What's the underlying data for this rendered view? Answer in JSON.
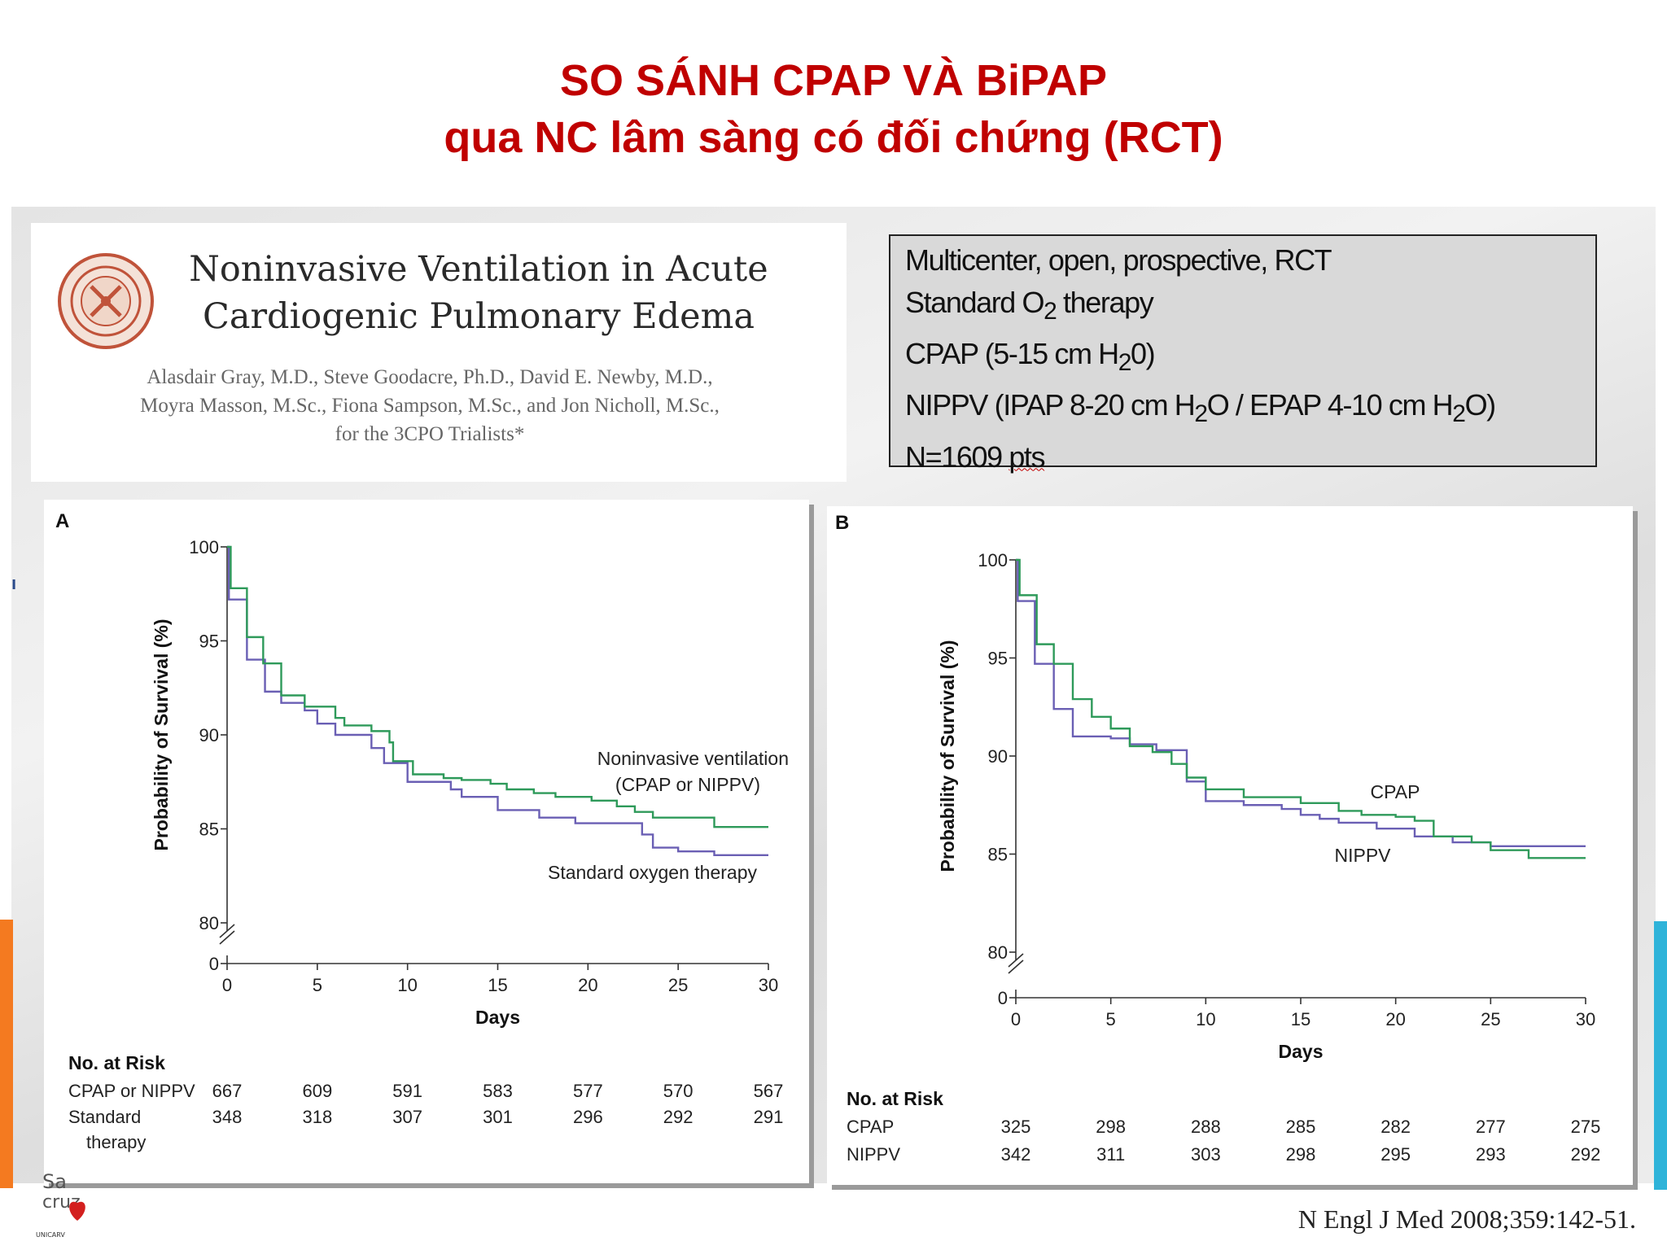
{
  "slide": {
    "title_line1": "SO SÁNH CPAP VÀ BiPAP",
    "title_line2": "qua NC lâm sàng có đối chứng (RCT)",
    "citation": "N Engl J Med 2008;359:142-51.",
    "stray_mark": "ı"
  },
  "paper": {
    "title_line1": "Noninvasive Ventilation in Acute",
    "title_line2": "Cardiogenic Pulmonary Edema",
    "authors_line1": "Alasdair Gray, M.D., Steve Goodacre, Ph.D., David E. Newby, M.D.,",
    "authors_line2": "Moyra Masson, M.Sc., Fiona Sampson, M.Sc., and Jon Nicholl, M.Sc.,",
    "authors_line3": "for the 3CPO Trialists*"
  },
  "info": {
    "line1": "Multicenter, open, prospective, RCT",
    "line2_pre": "Standard O",
    "line2_sub": "2",
    "line2_post": " therapy",
    "line3_pre": "CPAP (5-15 cm H",
    "line3_sub": "2",
    "line3_post": "0)",
    "line4_a": "NIPPV (IPAP 8-20 cm H",
    "line4_sub1": "2",
    "line4_b": "O /  EPAP 4-10 cm H",
    "line4_sub2": "2",
    "line4_c": "O)",
    "line5_pre": "N=1609 ",
    "line5_wavy": "pts"
  },
  "logo": {
    "line1": "Sa",
    "line2": "cruz",
    "caption": "UNICARV"
  },
  "colors": {
    "title_red": "#c00000",
    "green_line": "#2e9a5a",
    "purple_line": "#6a5fb4"
  },
  "chart_data": [
    {
      "type": "line",
      "panel_label": "A",
      "xlabel": "Days",
      "ylabel": "Probability of Survival (%)",
      "xlim": [
        0,
        30
      ],
      "ylim": [
        80,
        100
      ],
      "x_ticks": [
        "0",
        "5",
        "10",
        "15",
        "20",
        "25",
        "30"
      ],
      "y_ticks": [
        "100",
        "95",
        "90",
        "85",
        "80"
      ],
      "y_zero_label": "0",
      "series": [
        {
          "name": "Noninvasive ventilation (CPAP or NIPPV)",
          "label_line1": "Noninvasive ventilation",
          "label_line2": "(CPAP or NIPPV)",
          "color": "#2e9a5a",
          "steps": [
            [
              0,
              100
            ],
            [
              0.2,
              97.8
            ],
            [
              1.1,
              95.2
            ],
            [
              2,
              93.8
            ],
            [
              3,
              92.1
            ],
            [
              4.3,
              91.5
            ],
            [
              6,
              90.9
            ],
            [
              6.5,
              90.5
            ],
            [
              8,
              90.2
            ],
            [
              9,
              89.6
            ],
            [
              9.2,
              88.6
            ],
            [
              10.3,
              87.9
            ],
            [
              12,
              87.7
            ],
            [
              13,
              87.6
            ],
            [
              14.6,
              87.4
            ],
            [
              15.5,
              87.1
            ],
            [
              17,
              86.9
            ],
            [
              18.2,
              86.7
            ],
            [
              20.2,
              86.5
            ],
            [
              21.6,
              86.2
            ],
            [
              22.6,
              85.9
            ],
            [
              23.6,
              85.6
            ],
            [
              27,
              85.1
            ],
            [
              29.9,
              85.1
            ]
          ]
        },
        {
          "name": "Standard oxygen therapy",
          "label_line1": "Standard oxygen therapy",
          "color": "#6a5fb4",
          "steps": [
            [
              0,
              100
            ],
            [
              0.1,
              97.2
            ],
            [
              1.1,
              94
            ],
            [
              2.1,
              92.3
            ],
            [
              3,
              91.7
            ],
            [
              4.3,
              91.3
            ],
            [
              5,
              90.6
            ],
            [
              6,
              90
            ],
            [
              8,
              89.3
            ],
            [
              8.7,
              88.5
            ],
            [
              10,
              87.5
            ],
            [
              12.4,
              87.1
            ],
            [
              13,
              86.7
            ],
            [
              15,
              86
            ],
            [
              17.3,
              85.6
            ],
            [
              19.3,
              85.3
            ],
            [
              23,
              84.7
            ],
            [
              23.6,
              84
            ],
            [
              25,
              83.8
            ],
            [
              27,
              83.6
            ],
            [
              29.9,
              83.6
            ]
          ]
        }
      ],
      "risk_table": {
        "header": "No. at Risk",
        "rows": [
          {
            "label": "CPAP or NIPPV",
            "values": [
              "667",
              "609",
              "591",
              "583",
              "577",
              "570",
              "567"
            ]
          },
          {
            "label_line1": "Standard",
            "label_line2": "therapy",
            "values": [
              "348",
              "318",
              "307",
              "301",
              "296",
              "292",
              "291"
            ]
          }
        ]
      }
    },
    {
      "type": "line",
      "panel_label": "B",
      "xlabel": "Days",
      "ylabel": "Probability of Survival (%)",
      "xlim": [
        0,
        30
      ],
      "ylim": [
        80,
        100
      ],
      "x_ticks": [
        "0",
        "5",
        "10",
        "15",
        "20",
        "25",
        "30"
      ],
      "y_ticks": [
        "100",
        "95",
        "90",
        "85",
        "80"
      ],
      "y_zero_label": "0",
      "series": [
        {
          "name": "CPAP",
          "label_line1": "CPAP",
          "color": "#2e9a5a",
          "steps": [
            [
              0,
              100
            ],
            [
              0.2,
              98.2
            ],
            [
              1.1,
              95.7
            ],
            [
              2,
              94.7
            ],
            [
              3,
              92.9
            ],
            [
              4,
              92
            ],
            [
              5,
              91.4
            ],
            [
              6,
              90.5
            ],
            [
              7.2,
              90.2
            ],
            [
              8.2,
              89.6
            ],
            [
              9,
              88.9
            ],
            [
              10,
              88.3
            ],
            [
              12,
              87.9
            ],
            [
              15,
              87.6
            ],
            [
              17,
              87.2
            ],
            [
              18.2,
              87
            ],
            [
              20,
              86.9
            ],
            [
              21,
              86.7
            ],
            [
              22,
              85.9
            ],
            [
              24,
              85.6
            ],
            [
              25,
              85.2
            ],
            [
              27,
              84.8
            ],
            [
              29.9,
              84.8
            ]
          ]
        },
        {
          "name": "NIPPV",
          "label_line1": "NIPPV",
          "color": "#6a5fb4",
          "steps": [
            [
              0,
              100
            ],
            [
              0.1,
              97.9
            ],
            [
              1,
              94.7
            ],
            [
              2,
              92.4
            ],
            [
              3,
              91
            ],
            [
              5,
              90.9
            ],
            [
              6,
              90.6
            ],
            [
              7.4,
              90.3
            ],
            [
              9,
              88.7
            ],
            [
              10,
              87.7
            ],
            [
              12,
              87.5
            ],
            [
              14,
              87.3
            ],
            [
              15,
              87
            ],
            [
              16,
              86.8
            ],
            [
              17,
              86.6
            ],
            [
              19,
              86.3
            ],
            [
              21,
              85.9
            ],
            [
              23,
              85.6
            ],
            [
              25,
              85.4
            ],
            [
              29.9,
              85.4
            ]
          ]
        }
      ],
      "risk_table": {
        "header": "No. at Risk",
        "rows": [
          {
            "label": "CPAP",
            "values": [
              "325",
              "298",
              "288",
              "285",
              "282",
              "277",
              "275"
            ]
          },
          {
            "label": "NIPPV",
            "values": [
              "342",
              "311",
              "303",
              "298",
              "295",
              "293",
              "292"
            ]
          }
        ]
      }
    }
  ]
}
